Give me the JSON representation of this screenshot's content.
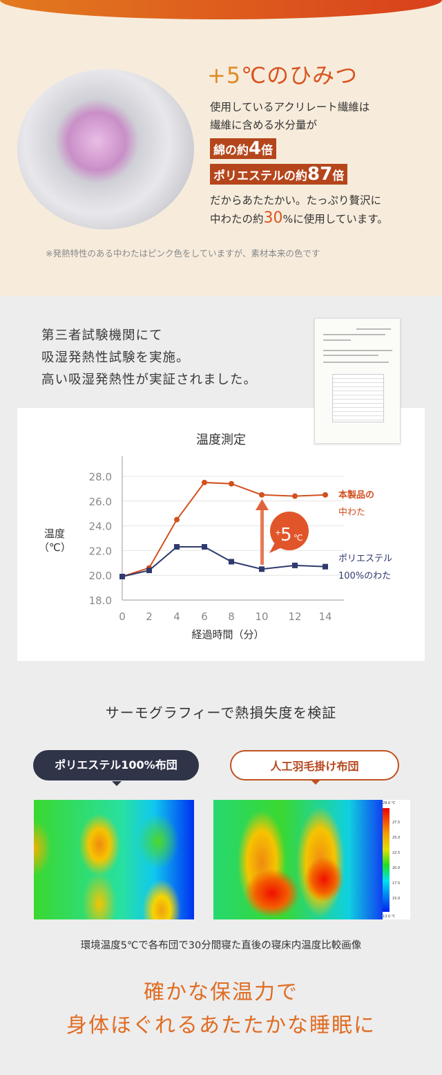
{
  "secret": {
    "title_plus": "+5",
    "title_rest": "℃のひみつ",
    "line1": "使用しているアクリレート繊維は",
    "line2": "繊維に含める水分量が",
    "tag1_pre": "綿の約",
    "tag1_num": "4",
    "tag1_post": "倍",
    "tag2_pre": "ポリエステルの約",
    "tag2_num": "87",
    "tag2_post": "倍",
    "line3": "だからあたたかい。たっぷり贅沢に",
    "line4_pre": "中わたの約",
    "line4_num": "30",
    "line4_post": "%に使用しています。",
    "note": "※発熱特性のある中わたはピンク色をしていますが、素材本来の色です"
  },
  "test": {
    "line1": "第三者試験機関にて",
    "line2": "吸湿発熱性試験を実施。",
    "line3": "高い吸湿発熱性が実証されました。"
  },
  "chart_data": {
    "type": "line",
    "title": "温度測定",
    "xlabel": "経過時間（分）",
    "ylabel": "温度（℃）",
    "x": [
      0,
      2,
      4,
      6,
      8,
      10,
      12,
      14
    ],
    "ylim": [
      18,
      28
    ],
    "yticks": [
      "18.0",
      "20.0",
      "22.0",
      "24.0",
      "26.0",
      "28.0"
    ],
    "grid": true,
    "series": [
      {
        "name": "本製品の中わた",
        "name_l1": "本製品の",
        "name_l2": "中わた",
        "color": "#d1501f",
        "marker": "circle",
        "values": [
          19.9,
          20.6,
          24.5,
          27.5,
          27.4,
          26.5,
          26.4,
          26.5
        ]
      },
      {
        "name": "ポリエステル100%のわた",
        "name_l1": "ポリエステル",
        "name_l2": "100%のわた",
        "color": "#2f3a6e",
        "marker": "square",
        "values": [
          19.9,
          20.4,
          22.3,
          22.3,
          21.1,
          20.5,
          20.8,
          20.7
        ]
      }
    ],
    "annotation": {
      "plus": "+",
      "num": "5",
      "unit": "℃"
    }
  },
  "thermo": {
    "title": "サーモグラフィーで熱損失度を検証",
    "label_left": "ポリエステル100%布団",
    "label_right": "人工羽毛掛け布団",
    "scale": [
      "29.0 ℃",
      "27.5",
      "25.0",
      "22.5",
      "20.0",
      "17.5",
      "15.0",
      "13.0 ℃"
    ],
    "caption": "環境温度5℃で各布団で30分間寝た直後の寝床内温度比較画像"
  },
  "final": {
    "line1": "確かな保温力で",
    "line2": "身体ほぐれるあたたかな睡眠に"
  }
}
